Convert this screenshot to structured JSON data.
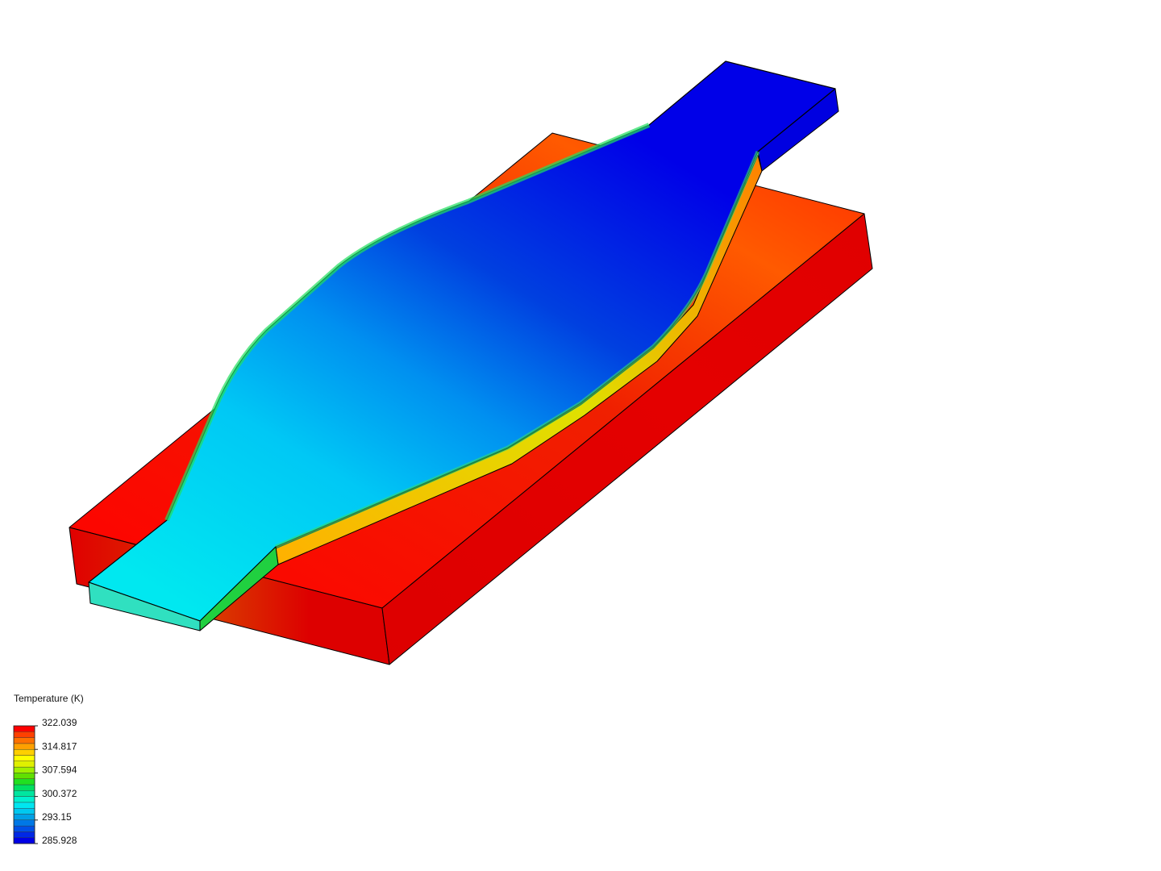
{
  "legend": {
    "title": "Temperature (K)",
    "ticks": [
      322.039,
      314.817,
      307.594,
      300.372,
      293.15,
      285.928
    ]
  }
}
